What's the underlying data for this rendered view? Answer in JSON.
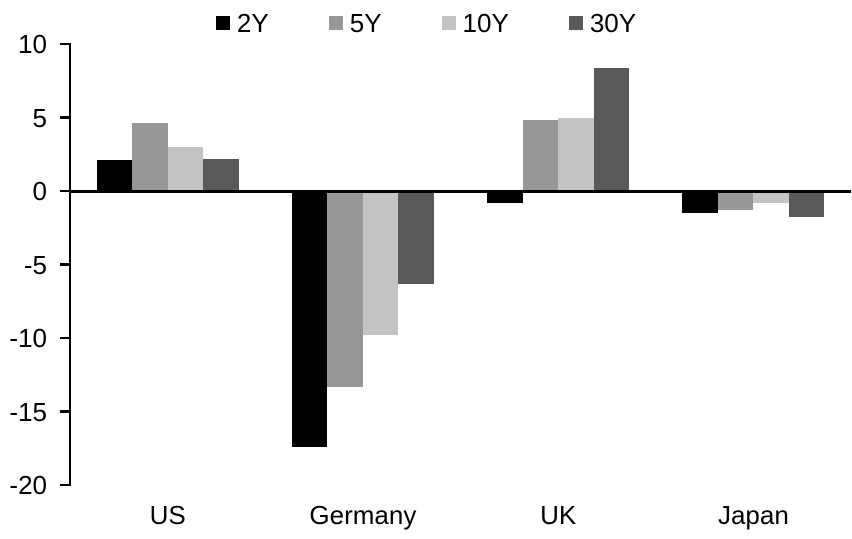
{
  "chart_data": {
    "type": "bar",
    "title": "",
    "xlabel": "",
    "ylabel": "",
    "categories": [
      "US",
      "Germany",
      "UK",
      "Japan"
    ],
    "series": [
      {
        "name": "2Y",
        "color": "#000000",
        "values": [
          2.1,
          -17.4,
          -0.8,
          -1.5
        ]
      },
      {
        "name": "5Y",
        "color": "#979797",
        "values": [
          4.6,
          -13.3,
          4.8,
          -1.3
        ]
      },
      {
        "name": "10Y",
        "color": "#c3c3c3",
        "values": [
          3.0,
          -9.8,
          5.0,
          -0.8
        ]
      },
      {
        "name": "30Y",
        "color": "#595959",
        "values": [
          2.2,
          -6.3,
          8.4,
          -1.8
        ]
      }
    ],
    "ylim": [
      -20,
      10
    ],
    "yticks": [
      10,
      5,
      0,
      -5,
      -10,
      -15,
      -20
    ],
    "legend_position": "top-center",
    "grid": false,
    "axis_color": "#000000",
    "background_color": "#ffffff"
  }
}
